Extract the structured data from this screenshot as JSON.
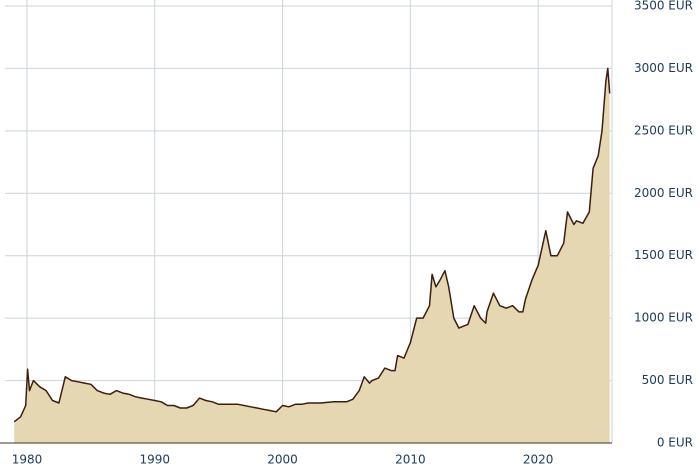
{
  "chart_data": {
    "type": "area",
    "x": [
      1979.0,
      1979.5,
      1979.9,
      1980.05,
      1980.2,
      1980.5,
      1981,
      1981.5,
      1982,
      1982.5,
      1983,
      1983.5,
      1984,
      1984.5,
      1985,
      1985.5,
      1986,
      1986.5,
      1987,
      1987.5,
      1988,
      1988.5,
      1989,
      1989.5,
      1990,
      1990.5,
      1991,
      1991.5,
      1992,
      1992.5,
      1993,
      1993.5,
      1994,
      1994.5,
      1995,
      1996,
      1996.5,
      1997,
      1997.5,
      1998,
      1998.5,
      1999,
      1999.5,
      2000,
      2000.5,
      2001,
      2001.5,
      2002,
      2002.5,
      2003,
      2004,
      2005,
      2005.5,
      2006,
      2006.4,
      2006.8,
      2007,
      2007.5,
      2008,
      2008.5,
      2008.8,
      2009,
      2009.5,
      2009.9,
      2010,
      2010.5,
      2011,
      2011.5,
      2011.7,
      2012,
      2012.3,
      2012.7,
      2013,
      2013.4,
      2013.8,
      2014,
      2014.5,
      2015,
      2015.5,
      2015.9,
      2016,
      2016.5,
      2017,
      2017.5,
      2018,
      2018.5,
      2018.8,
      2019,
      2019.5,
      2019.9,
      2020,
      2020.6,
      2021,
      2021.5,
      2022,
      2022.3,
      2022.8,
      2023,
      2023.5,
      2024,
      2024.3,
      2024.7,
      2025,
      2025.3,
      2025.45,
      2025.6
    ],
    "values": [
      170,
      210,
      300,
      590,
      420,
      500,
      450,
      420,
      340,
      320,
      530,
      500,
      490,
      480,
      470,
      420,
      400,
      390,
      420,
      400,
      390,
      370,
      360,
      350,
      340,
      330,
      300,
      300,
      280,
      280,
      300,
      360,
      340,
      330,
      310,
      310,
      310,
      300,
      290,
      280,
      270,
      260,
      250,
      300,
      290,
      310,
      310,
      320,
      320,
      320,
      330,
      330,
      350,
      420,
      530,
      480,
      500,
      520,
      600,
      580,
      580,
      700,
      680,
      780,
      800,
      1000,
      1000,
      1100,
      1350,
      1250,
      1300,
      1380,
      1250,
      1000,
      920,
      930,
      950,
      1100,
      1000,
      960,
      1050,
      1200,
      1100,
      1080,
      1100,
      1050,
      1050,
      1150,
      1300,
      1400,
      1420,
      1700,
      1500,
      1500,
      1600,
      1850,
      1750,
      1780,
      1760,
      1850,
      2200,
      2300,
      2500,
      2900,
      3000,
      2800
    ],
    "color": "#3b1e10",
    "fill": "#e6d7b3",
    "xlim": [
      1978.28,
      2025.78
    ],
    "xticks": [
      1980,
      1990,
      2000,
      2010,
      2020
    ],
    "ylim": [
      0,
      3500
    ],
    "yticks": [
      {
        "value": 0,
        "label": "0 EUR"
      },
      {
        "value": 500,
        "label": "500 EUR"
      },
      {
        "value": 1000,
        "label": "1000 EUR"
      },
      {
        "value": 1500,
        "label": "1500 EUR"
      },
      {
        "value": 2000,
        "label": "2000 EUR"
      },
      {
        "value": 2500,
        "label": "2500 EUR"
      },
      {
        "value": 3000,
        "label": "3000 EUR"
      },
      {
        "value": 3500,
        "label": "3500 EUR"
      }
    ],
    "grid": true
  }
}
